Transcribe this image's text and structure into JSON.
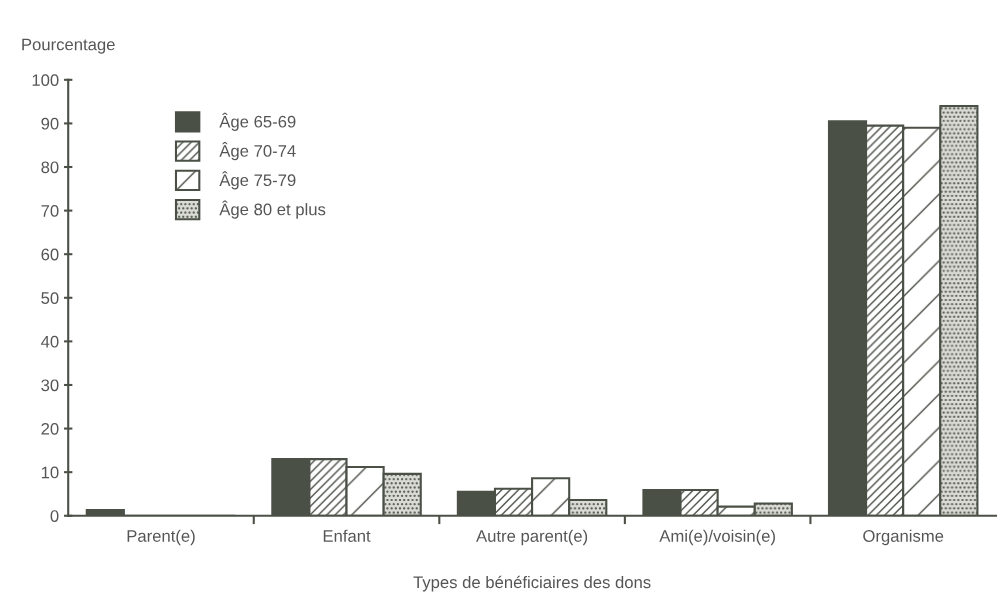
{
  "chart_data": {
    "type": "bar",
    "xlabel": "Types de bénéficiaires des dons",
    "ylabel": "Pourcentage",
    "categories": [
      "Parent(e)",
      "Enfant",
      "Autre parent(e)",
      "Ami(e)/voisin(e)",
      "Organisme"
    ],
    "series": [
      {
        "name": "Âge 65-69",
        "color": "#4b5047",
        "values": [
          1.3,
          13,
          5.5,
          5.9,
          90.5
        ]
      },
      {
        "name": "Âge 70-74",
        "color": "#ffffff",
        "values": [
          0,
          13,
          6.2,
          5.9,
          89.5
        ]
      },
      {
        "name": "Âge 75-79",
        "color": "#ffffff",
        "values": [
          0,
          11.2,
          8.6,
          2.1,
          89
        ]
      },
      {
        "name": "Âge 80 et plus",
        "color": "#dcdcd6",
        "values": [
          0,
          9.6,
          3.6,
          2.8,
          94
        ]
      }
    ],
    "ylim": [
      0,
      100
    ],
    "yticks": [
      0,
      10,
      20,
      30,
      40,
      50,
      60,
      70,
      80,
      90,
      100
    ],
    "grid": false,
    "legend": "top left"
  }
}
